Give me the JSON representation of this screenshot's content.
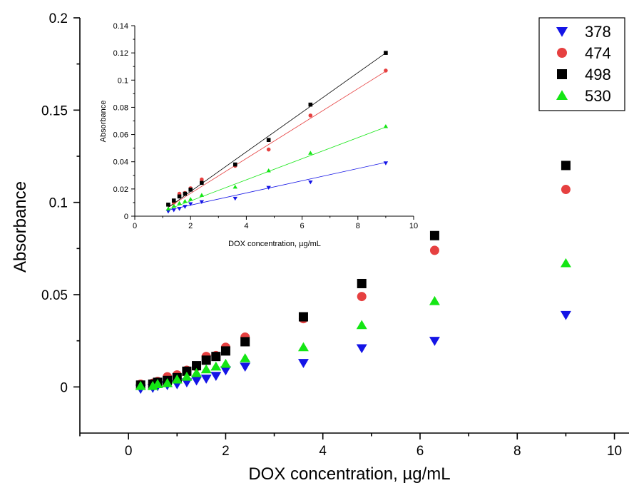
{
  "colors": {
    "378": "#1414e6",
    "474": "#e64040",
    "498": "#000000",
    "530": "#14e614"
  },
  "chart_data": [
    {
      "id": "main",
      "type": "scatter",
      "xlabel": "DOX concentration, µg/mL",
      "ylabel": "Absorbance",
      "xlim": [
        -1,
        10.3
      ],
      "ylim": [
        -0.025,
        0.2
      ],
      "xticks": [
        0,
        2,
        4,
        6,
        8,
        10
      ],
      "xtick_labels": [
        "0",
        "2",
        "4",
        "6",
        "8",
        "10"
      ],
      "yticks": [
        0,
        0.05,
        0.1,
        0.15,
        0.2
      ],
      "ytick_labels": [
        "0",
        "0.05",
        "0.1",
        "0.15",
        "0.2"
      ],
      "legend": {
        "placement": "top-right",
        "entries": [
          "378",
          "474",
          "498",
          "530"
        ]
      },
      "series": [
        {
          "name": "378",
          "marker": "triangle-down",
          "x": [
            0.25,
            0.5,
            0.6,
            0.8,
            1.0,
            1.2,
            1.4,
            1.6,
            1.8,
            2.0,
            2.4,
            3.6,
            4.8,
            6.3,
            9.0
          ],
          "y": [
            -0.001,
            -0.0005,
            0.0005,
            0.001,
            0.0015,
            0.0025,
            0.0035,
            0.0045,
            0.006,
            0.009,
            0.011,
            0.013,
            0.021,
            0.025,
            0.039
          ]
        },
        {
          "name": "474",
          "marker": "circle",
          "x": [
            0.25,
            0.5,
            0.6,
            0.8,
            1.0,
            1.2,
            1.4,
            1.6,
            1.8,
            2.0,
            2.4,
            3.6,
            4.8,
            6.3,
            9.0
          ],
          "y": [
            0.0015,
            0.002,
            0.003,
            0.0055,
            0.0065,
            0.009,
            0.011,
            0.0165,
            0.017,
            0.0215,
            0.027,
            0.037,
            0.049,
            0.074,
            0.107
          ]
        },
        {
          "name": "498",
          "marker": "square",
          "x": [
            0.25,
            0.5,
            0.6,
            0.8,
            1.0,
            1.2,
            1.4,
            1.6,
            1.8,
            2.0,
            2.4,
            3.6,
            4.8,
            6.3,
            9.0
          ],
          "y": [
            0.001,
            0.0015,
            0.0025,
            0.0035,
            0.005,
            0.0085,
            0.0115,
            0.0145,
            0.0165,
            0.0195,
            0.0245,
            0.038,
            0.056,
            0.082,
            0.12
          ]
        },
        {
          "name": "530",
          "marker": "triangle-up",
          "x": [
            0.25,
            0.5,
            0.6,
            0.8,
            1.0,
            1.2,
            1.4,
            1.6,
            1.8,
            2.0,
            2.4,
            3.6,
            4.8,
            6.3,
            9.0
          ],
          "y": [
            0.0005,
            0.0005,
            0.0015,
            0.002,
            0.004,
            0.0055,
            0.0075,
            0.0095,
            0.011,
            0.0125,
            0.0155,
            0.0215,
            0.0335,
            0.0465,
            0.067
          ]
        }
      ]
    },
    {
      "id": "inset",
      "type": "scatter",
      "xlabel": "DOX concentration, µg/mL",
      "ylabel": "Absorbance",
      "xlim": [
        0,
        10
      ],
      "ylim": [
        0,
        0.14
      ],
      "xticks": [
        0,
        2,
        4,
        6,
        8,
        10
      ],
      "xtick_labels": [
        "0",
        "2",
        "4",
        "6",
        "8",
        "10"
      ],
      "yticks": [
        0,
        0.02,
        0.04,
        0.06,
        0.08,
        0.1,
        0.12,
        0.14
      ],
      "ytick_labels": [
        "0",
        "0.02",
        "0.04",
        "0.06",
        "0.08",
        "0.1",
        "0.12",
        "0.14"
      ],
      "series": [
        {
          "name": "378",
          "marker": "triangle-down",
          "x": [
            1.2,
            1.4,
            1.6,
            1.8,
            2.0,
            2.4,
            3.6,
            4.8,
            6.3,
            9.0
          ],
          "y": [
            0.0035,
            0.0045,
            0.0055,
            0.007,
            0.009,
            0.0105,
            0.013,
            0.021,
            0.025,
            0.039
          ],
          "fit": {
            "x": [
              1.2,
              9.0
            ],
            "y": [
              0.0045,
              0.0395
            ]
          }
        },
        {
          "name": "474",
          "marker": "circle",
          "x": [
            1.2,
            1.4,
            1.6,
            1.8,
            2.0,
            2.4,
            3.6,
            4.8,
            6.3,
            9.0
          ],
          "y": [
            0.0085,
            0.01,
            0.0165,
            0.017,
            0.0205,
            0.027,
            0.037,
            0.049,
            0.074,
            0.107
          ],
          "fit": {
            "x": [
              1.2,
              9.0
            ],
            "y": [
              0.0065,
              0.1065
            ]
          }
        },
        {
          "name": "498",
          "marker": "square",
          "x": [
            1.2,
            1.4,
            1.6,
            1.8,
            2.0,
            2.4,
            3.6,
            4.8,
            6.3,
            9.0
          ],
          "y": [
            0.0085,
            0.0115,
            0.0145,
            0.0165,
            0.0195,
            0.0245,
            0.038,
            0.056,
            0.082,
            0.12
          ],
          "fit": {
            "x": [
              1.2,
              9.0
            ],
            "y": [
              0.0065,
              0.12
            ]
          }
        },
        {
          "name": "530",
          "marker": "triangle-up",
          "x": [
            1.2,
            1.4,
            1.6,
            1.8,
            2.0,
            2.4,
            3.6,
            4.8,
            6.3,
            9.0
          ],
          "y": [
            0.0055,
            0.0075,
            0.0095,
            0.011,
            0.0125,
            0.0155,
            0.0215,
            0.0335,
            0.0465,
            0.066
          ],
          "fit": {
            "x": [
              1.2,
              9.0
            ],
            "y": [
              0.005,
              0.0655
            ]
          }
        }
      ]
    }
  ]
}
